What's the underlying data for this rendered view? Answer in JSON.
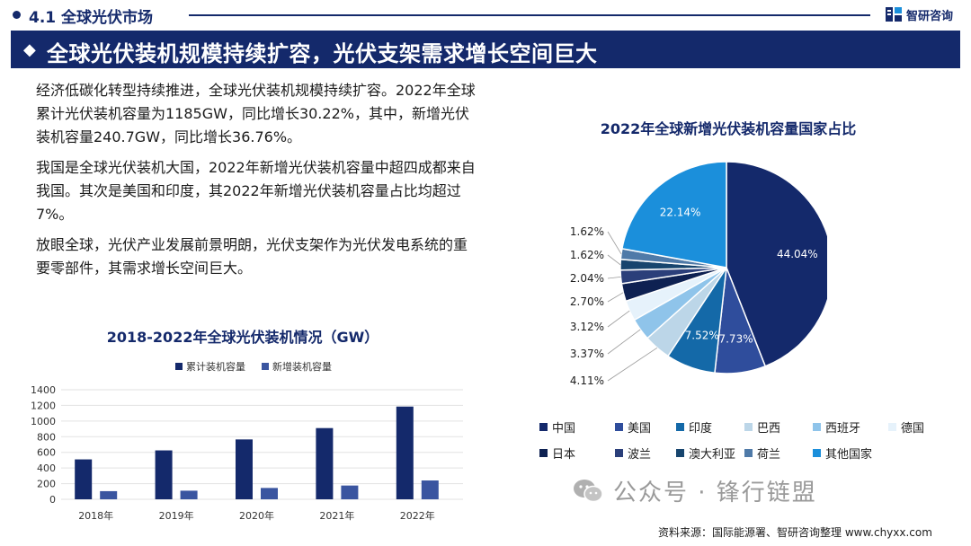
{
  "header": {
    "section_label": "4.1  全球光伏市场",
    "logo_text": "智研咨询",
    "logo_icon": "zhiyan-logo-icon"
  },
  "banner": {
    "title": "全球光伏装机规模持续扩容，光伏支架需求增长空间巨大"
  },
  "paragraphs": [
    "经济低碳化转型持续推进，全球光伏装机规模持续扩容。2022年全球累计光伏装机容量为1185GW，同比增长30.22%，其中，新增光伏装机容量240.7GW，同比增长36.76%。",
    "我国是全球光伏装机大国，2022年新增光伏装机容量中超四成都来自我国。其次是美国和印度，其2022年新增光伏装机容量占比均超过7%。",
    "放眼全球，光伏产业发展前景明朗，光伏支架作为光伏发电系统的重要零部件，其需求增长空间巨大。"
  ],
  "chart_data": [
    {
      "type": "bar",
      "title": "2018-2022年全球光伏装机情况（GW）",
      "categories": [
        "2018年",
        "2019年",
        "2020年",
        "2021年",
        "2022年"
      ],
      "series": [
        {
          "name": "累计装机容量",
          "values": [
            510,
            625,
            765,
            910,
            1185
          ],
          "color": "#14296b"
        },
        {
          "name": "新增装机容量",
          "values": [
            104,
            110,
            145,
            176,
            240.7
          ],
          "color": "#3a55a0"
        }
      ],
      "yticks": [
        "0",
        "200",
        "400",
        "600",
        "800",
        "1000",
        "1200",
        "1400"
      ],
      "ylim": [
        0,
        1400
      ],
      "grid": true,
      "legend": "top"
    },
    {
      "type": "pie",
      "title": "2022年全球新增光伏装机容量国家占比",
      "slices": [
        {
          "name": "中国",
          "value": 44.04,
          "label": "44.04%",
          "color": "#14296b"
        },
        {
          "name": "美国",
          "value": 7.73,
          "label": "7.73%",
          "color": "#2f4d9c"
        },
        {
          "name": "印度",
          "value": 7.52,
          "label": "7.52%",
          "color": "#1469a8"
        },
        {
          "name": "巴西",
          "value": 4.11,
          "label": "4.11%",
          "color": "#bcd6e8"
        },
        {
          "name": "西班牙",
          "value": 3.37,
          "label": "3.37%",
          "color": "#8fc4ea"
        },
        {
          "name": "德国",
          "value": 3.12,
          "label": "3.12%",
          "color": "#e6f2fb"
        },
        {
          "name": "日本",
          "value": 2.7,
          "label": "2.70%",
          "color": "#0e2152"
        },
        {
          "name": "波兰",
          "value": 2.04,
          "label": "2.04%",
          "color": "#2b3f7a"
        },
        {
          "name": "澳大利亚",
          "value": 1.62,
          "label": "1.62%",
          "color": "#17456e"
        },
        {
          "name": "荷兰",
          "value": 1.62,
          "label": "1.62%",
          "color": "#4f7aa8"
        },
        {
          "name": "其他国家",
          "value": 22.14,
          "label": "22.14%",
          "color": "#1b8fdb"
        }
      ],
      "legend": "bottom"
    }
  ],
  "watermark": {
    "wechat_icon": "wechat-icon",
    "text": "公众号 · 锋行链盟"
  },
  "footer": {
    "source": "资料来源：国际能源署、智研咨询整理  www.chyxx.com"
  }
}
